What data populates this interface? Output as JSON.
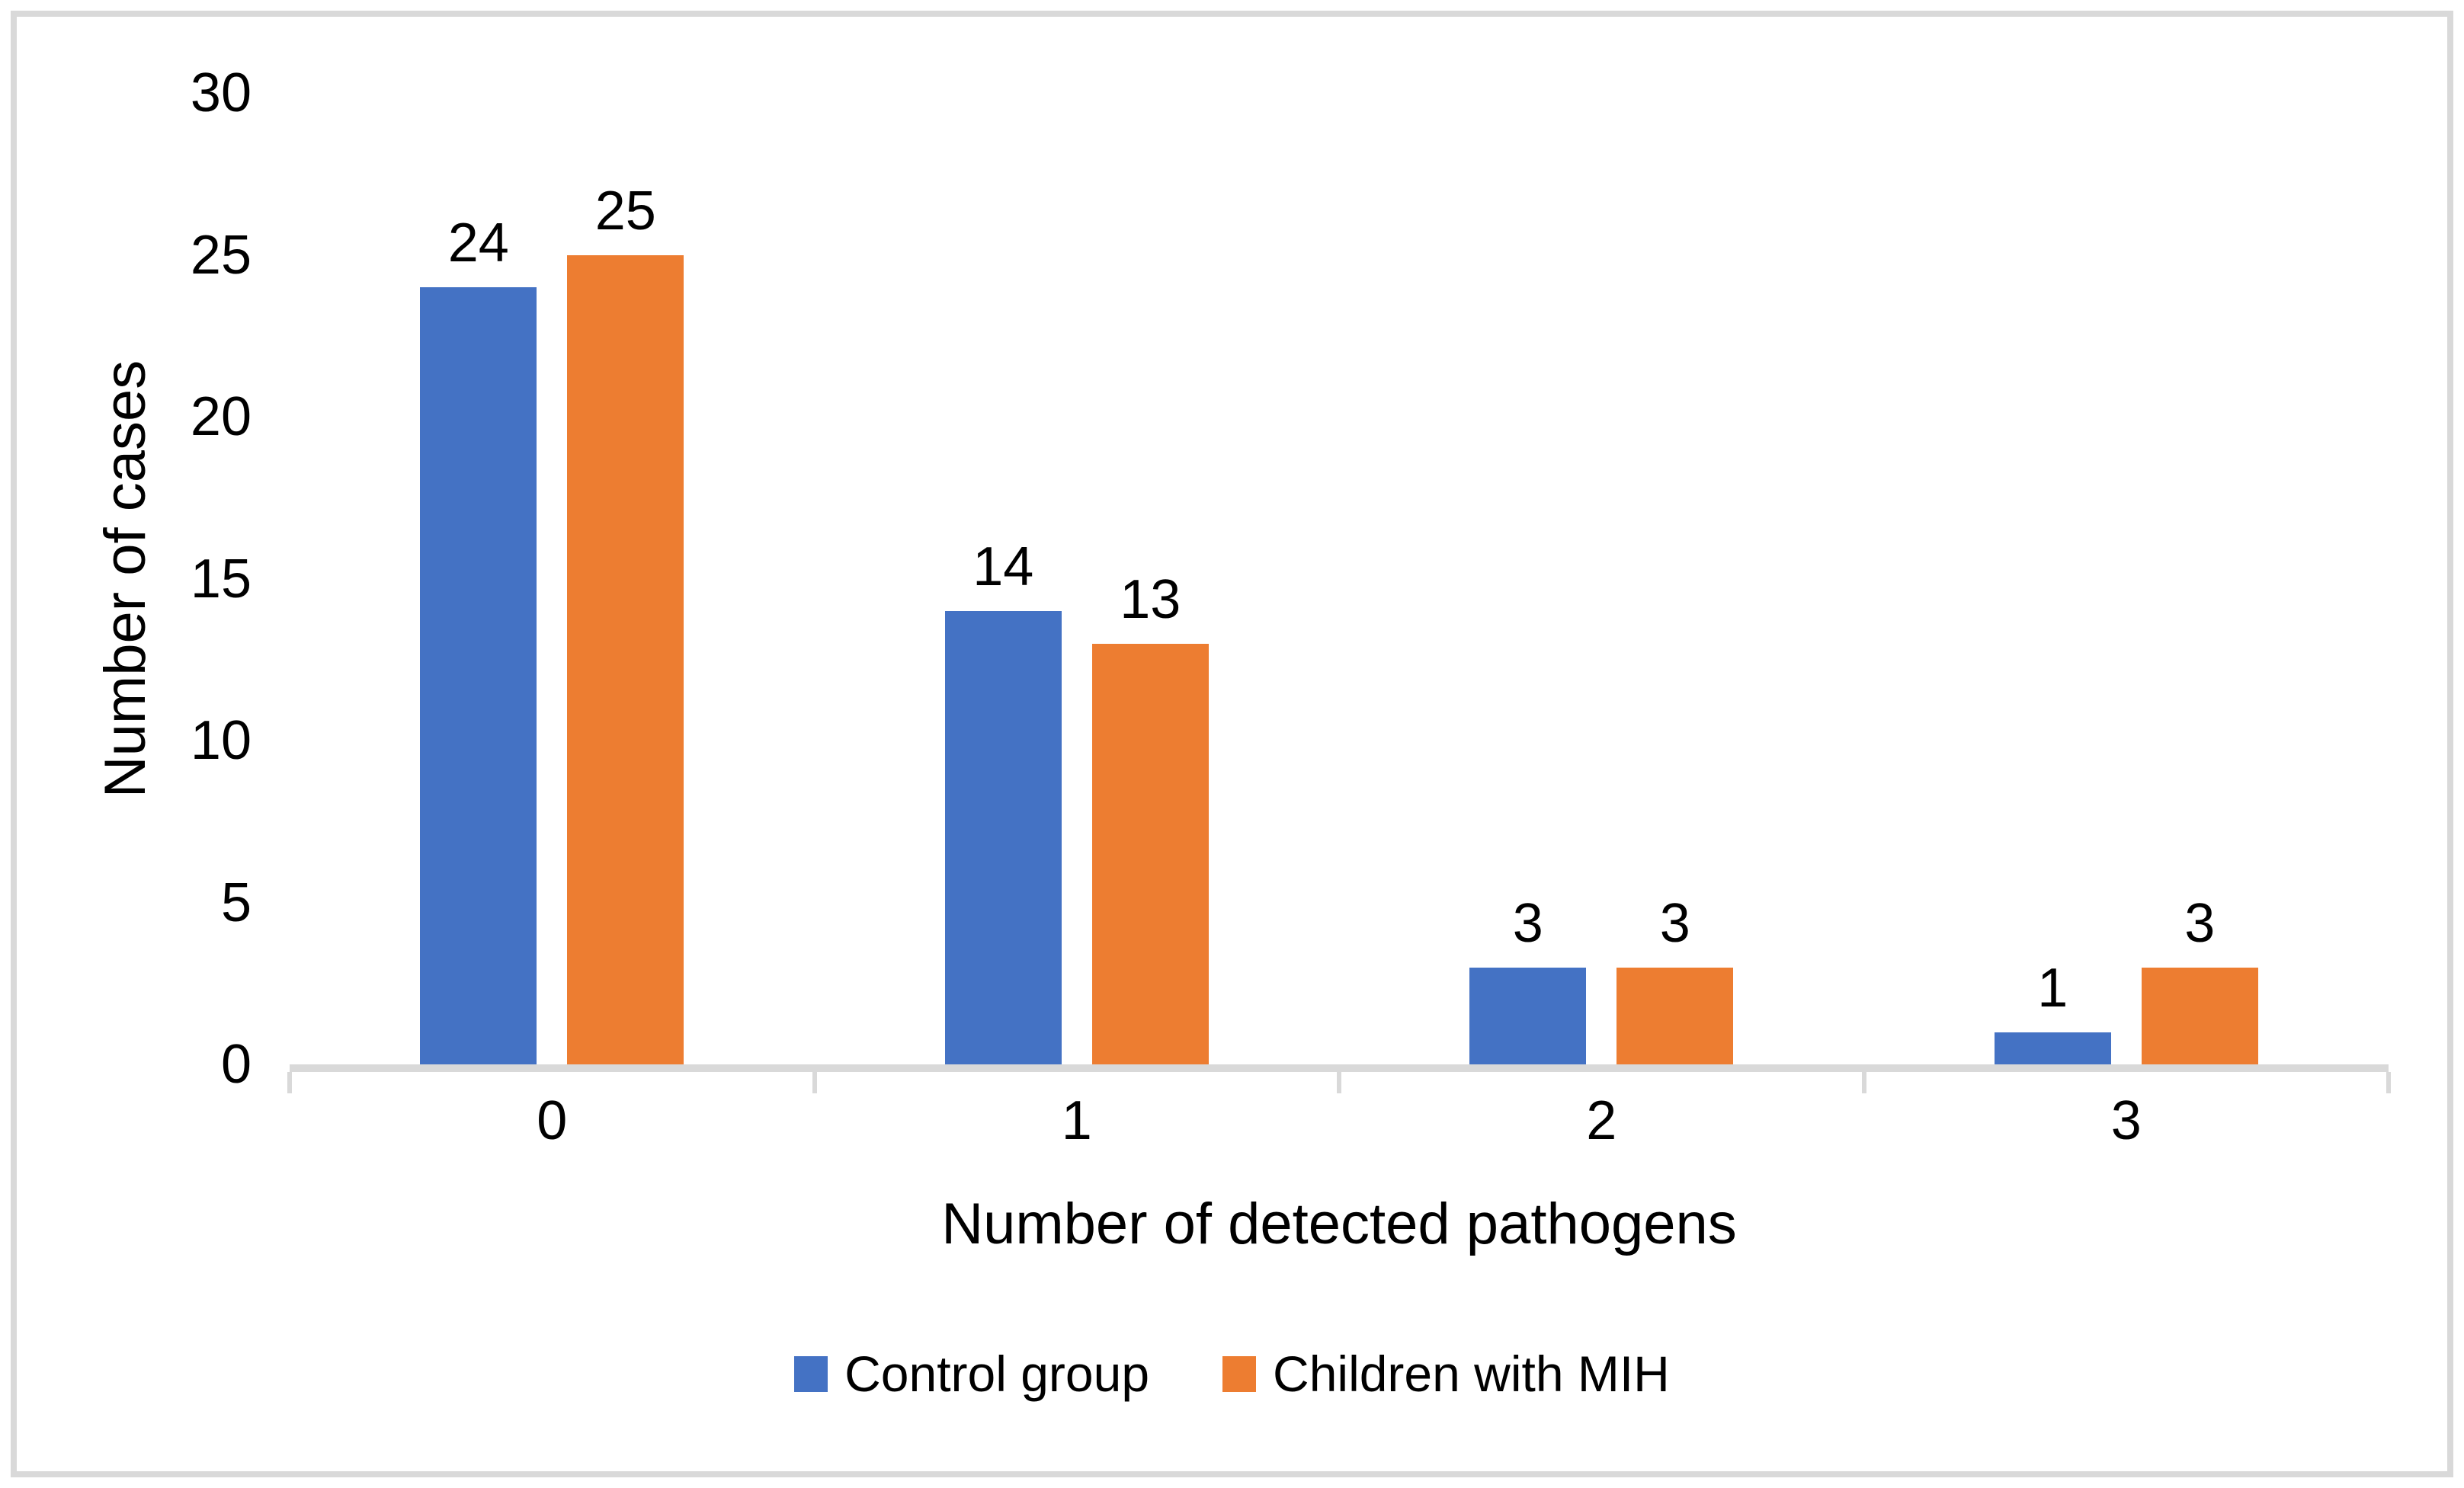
{
  "chart_data": {
    "type": "bar",
    "title": "",
    "categories": [
      "0",
      "1",
      "2",
      "3"
    ],
    "series": [
      {
        "name": "Control group",
        "color": "#4472C4",
        "values": [
          24,
          14,
          3,
          1
        ]
      },
      {
        "name": "Children with MIH",
        "color": "#ED7D31",
        "values": [
          25,
          13,
          3,
          3
        ]
      }
    ],
    "xlabel": "Number of detected pathogens",
    "ylabel": "Number of cases",
    "ylim": [
      0,
      30
    ],
    "yticks": [
      0,
      5,
      10,
      15,
      20,
      25,
      30
    ],
    "grid": false,
    "data_labels": true,
    "legend_position": "bottom"
  },
  "colors": {
    "axis_line": "#D9D9D9",
    "frame_border": "#D9D9D9",
    "text": "#000000",
    "background": "#FFFFFF"
  }
}
